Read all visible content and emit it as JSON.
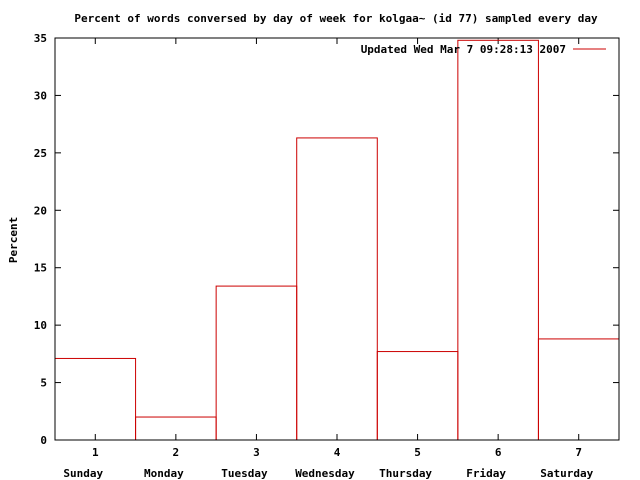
{
  "chart_data": {
    "type": "bar",
    "title": "Percent of words conversed by day of week for kolgaa~ (id 77) sampled every day",
    "xlabel": "",
    "ylabel": "Percent",
    "x": [
      1,
      2,
      3,
      4,
      5,
      6,
      7
    ],
    "categories": [
      "Sunday",
      "Monday",
      "Tuesday",
      "Wednesday",
      "Thursday",
      "Friday",
      "Saturday"
    ],
    "series": [
      {
        "name": "Updated Wed Mar  7 09:28:13 2007",
        "values": [
          7.1,
          2.0,
          13.4,
          26.3,
          7.7,
          34.8,
          8.8
        ]
      }
    ],
    "ylim": [
      0,
      35
    ],
    "xlim": [
      0.5,
      7.5
    ],
    "yticks": [
      0,
      5,
      10,
      15,
      20,
      25,
      30,
      35
    ],
    "grid": false,
    "legend_position": "top-right",
    "bar_color": "#cc0000"
  }
}
